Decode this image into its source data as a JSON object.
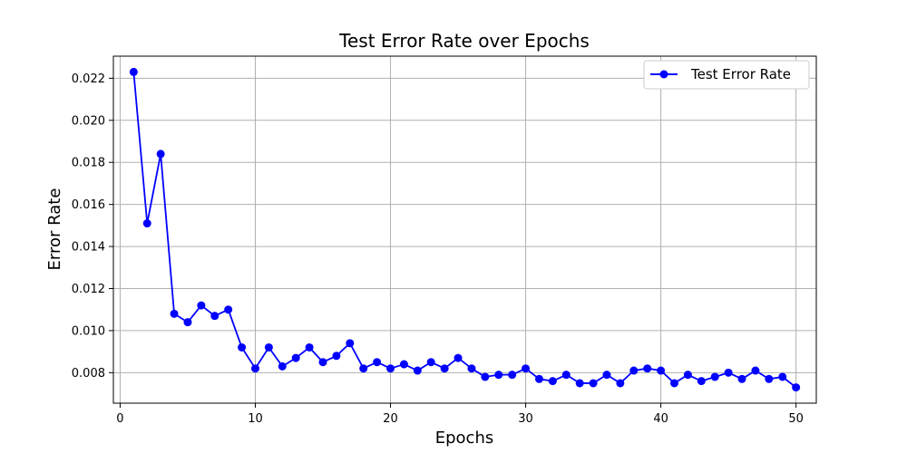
{
  "chart_data": {
    "type": "line",
    "title": "Test Error Rate over Epochs",
    "xlabel": "Epochs",
    "ylabel": "Error Rate",
    "xlim": [
      -0.5,
      51.5
    ],
    "ylim": [
      0.00655,
      0.02305
    ],
    "grid": true,
    "legend_position": "top-right",
    "x_ticks": [
      0,
      10,
      20,
      30,
      40,
      50
    ],
    "x_tick_labels": [
      "0",
      "10",
      "20",
      "30",
      "40",
      "50"
    ],
    "y_ticks": [
      0.008,
      0.01,
      0.012,
      0.014,
      0.016,
      0.018,
      0.02,
      0.022
    ],
    "y_tick_labels": [
      "0.008",
      "0.010",
      "0.012",
      "0.014",
      "0.016",
      "0.018",
      "0.020",
      "0.022"
    ],
    "series": [
      {
        "name": "Test Error Rate",
        "color": "#0000ff",
        "marker": "circle",
        "x": [
          1,
          2,
          3,
          4,
          5,
          6,
          7,
          8,
          9,
          10,
          11,
          12,
          13,
          14,
          15,
          16,
          17,
          18,
          19,
          20,
          21,
          22,
          23,
          24,
          25,
          26,
          27,
          28,
          29,
          30,
          31,
          32,
          33,
          34,
          35,
          36,
          37,
          38,
          39,
          40,
          41,
          42,
          43,
          44,
          45,
          46,
          47,
          48,
          49,
          50
        ],
        "y": [
          0.0223,
          0.0151,
          0.0184,
          0.0108,
          0.0104,
          0.0112,
          0.0107,
          0.011,
          0.0092,
          0.0082,
          0.0092,
          0.0083,
          0.0087,
          0.0092,
          0.0085,
          0.0088,
          0.0094,
          0.0082,
          0.0085,
          0.0082,
          0.0084,
          0.0081,
          0.0085,
          0.0082,
          0.0087,
          0.0082,
          0.0078,
          0.0079,
          0.0079,
          0.0082,
          0.0077,
          0.0076,
          0.0079,
          0.0075,
          0.0075,
          0.0079,
          0.0075,
          0.0081,
          0.0082,
          0.0081,
          0.0075,
          0.0079,
          0.0076,
          0.0078,
          0.008,
          0.0077,
          0.0081,
          0.0077,
          0.0078,
          0.0073
        ]
      }
    ]
  }
}
